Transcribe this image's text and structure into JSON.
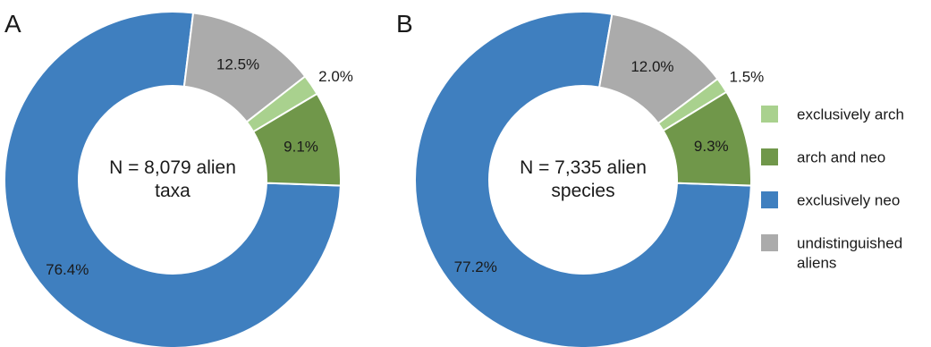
{
  "chart_data": [
    {
      "type": "pie",
      "panel": "A",
      "center_text": [
        "N = 8,079 alien",
        "taxa"
      ],
      "series": [
        {
          "name": "exclusively neo",
          "value": 76.4,
          "label": "76.4%",
          "color": "#3f7fbf"
        },
        {
          "name": "undistinguished aliens",
          "value": 12.5,
          "label": "12.5%",
          "color": "#ababab"
        },
        {
          "name": "exclusively arch",
          "value": 2.0,
          "label": "2.0%",
          "color": "#a9d18e"
        },
        {
          "name": "arch and neo",
          "value": 9.1,
          "label": "9.1%",
          "color": "#70974a"
        }
      ]
    },
    {
      "type": "pie",
      "panel": "B",
      "center_text": [
        "N = 7,335 alien",
        "species"
      ],
      "series": [
        {
          "name": "exclusively neo",
          "value": 77.2,
          "label": "77.2%",
          "color": "#3f7fbf"
        },
        {
          "name": "undistinguished aliens",
          "value": 12.0,
          "label": "12.0%",
          "color": "#ababab"
        },
        {
          "name": "exclusively arch",
          "value": 1.5,
          "label": "1.5%",
          "color": "#a9d18e"
        },
        {
          "name": "arch and neo",
          "value": 9.3,
          "label": "9.3%",
          "color": "#70974a"
        }
      ]
    }
  ],
  "legend": {
    "placement": "right",
    "items": [
      {
        "lines": [
          "exclusively arch"
        ],
        "color": "#a9d18e"
      },
      {
        "lines": [
          "arch and neo"
        ],
        "color": "#70974a"
      },
      {
        "lines": [
          "exclusively neo"
        ],
        "color": "#3f7fbf"
      },
      {
        "lines": [
          "undistinguished",
          "aliens"
        ],
        "color": "#ababab"
      }
    ]
  }
}
